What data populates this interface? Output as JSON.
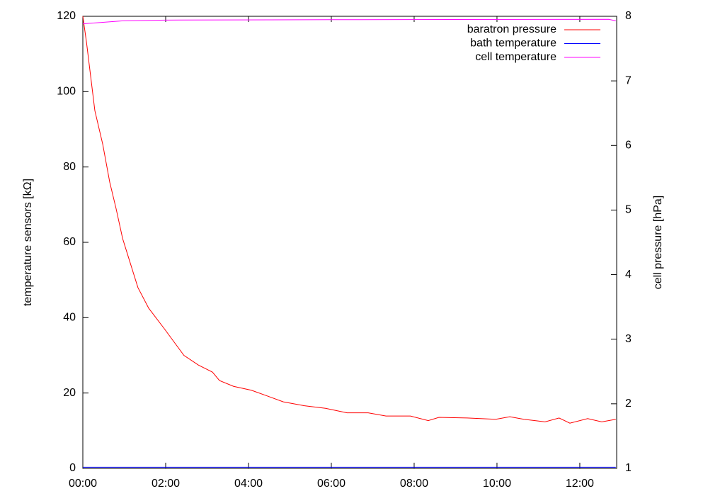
{
  "chart_data": {
    "type": "line",
    "y_label": "temperature sensors [kΩ]",
    "y2_label": "cell pressure [hPa]",
    "xlim": [
      0,
      12.89
    ],
    "xticks": [
      {
        "value": 0,
        "label": "00:00"
      },
      {
        "value": 2,
        "label": "02:00"
      },
      {
        "value": 4,
        "label": "04:00"
      },
      {
        "value": 6,
        "label": "06:00"
      },
      {
        "value": 8,
        "label": "08:00"
      },
      {
        "value": 10,
        "label": "10:00"
      },
      {
        "value": 12,
        "label": "12:00"
      }
    ],
    "ylim": [
      0,
      120
    ],
    "yticks": [
      0,
      20,
      40,
      60,
      80,
      100,
      120
    ],
    "y2lim": [
      1,
      8
    ],
    "y2ticks": [
      1,
      2,
      3,
      4,
      5,
      6,
      7,
      8
    ],
    "legend": "top-right",
    "series": [
      {
        "name": "baratron pressure",
        "color": "#ff0000",
        "axis": "y2",
        "x": [
          0,
          0.09,
          0.29,
          0.48,
          0.65,
          0.8,
          0.96,
          1.13,
          1.33,
          1.59,
          1.97,
          2.44,
          2.79,
          3.13,
          3.3,
          3.64,
          4.07,
          4.5,
          4.84,
          5.35,
          5.86,
          6.38,
          6.89,
          7.32,
          7.91,
          8.34,
          8.6,
          9.28,
          9.97,
          10.31,
          10.65,
          11.16,
          11.5,
          11.76,
          12.19,
          12.53,
          12.87
        ],
        "values": [
          8.0,
          7.59,
          6.54,
          6.02,
          5.43,
          5.03,
          4.56,
          4.21,
          3.8,
          3.48,
          3.16,
          2.75,
          2.6,
          2.49,
          2.36,
          2.27,
          2.21,
          2.11,
          2.03,
          1.97,
          1.93,
          1.86,
          1.86,
          1.81,
          1.81,
          1.74,
          1.79,
          1.78,
          1.76,
          1.8,
          1.76,
          1.72,
          1.78,
          1.7,
          1.77,
          1.72,
          1.76
        ]
      },
      {
        "name": "bath temperature",
        "color": "#0000ff",
        "x": [
          0,
          12.87
        ],
        "values": [
          0.3,
          0.3
        ]
      },
      {
        "name": "cell temperature",
        "color": "#ff00ff",
        "x": [
          0,
          0.97,
          2,
          6,
          12.7,
          12.87
        ],
        "values": [
          118,
          118.8,
          119,
          119.1,
          119.2,
          118.8
        ]
      }
    ]
  }
}
